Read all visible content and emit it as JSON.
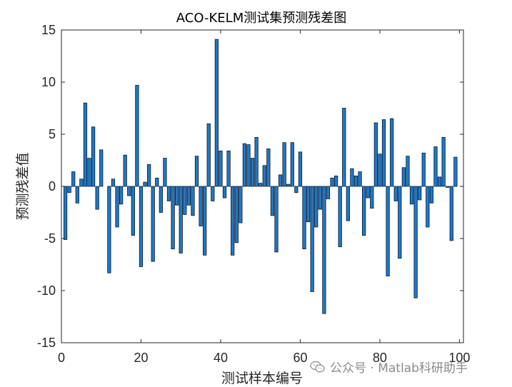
{
  "chart_data": {
    "type": "bar",
    "title": "ACO-KELM测试集预测残差图",
    "xlabel": "测试样本编号",
    "ylabel": "预测残差值",
    "xlim": [
      0,
      101
    ],
    "ylim": [
      -15,
      15
    ],
    "xticks": [
      0,
      20,
      40,
      60,
      80,
      100
    ],
    "yticks": [
      -15,
      -10,
      -5,
      0,
      5,
      10,
      15
    ],
    "grid": false,
    "colors": {
      "bar_fill": "#1f78c8",
      "bar_edge": "#0b1a2e"
    },
    "series": [
      {
        "x": [
          1,
          2,
          3,
          4,
          5,
          6,
          7,
          8,
          9,
          10,
          11,
          12,
          13,
          14,
          15,
          16,
          17,
          18,
          19,
          20,
          21,
          22,
          23,
          24,
          25,
          26,
          27,
          28,
          29,
          30,
          31,
          32,
          33,
          34,
          35,
          36,
          37,
          38,
          39,
          40,
          41,
          42,
          43,
          44,
          45,
          46,
          47,
          48,
          49,
          50,
          51,
          52,
          53,
          54,
          55,
          56,
          57,
          58,
          59,
          60,
          61,
          62,
          63,
          64,
          65,
          66,
          67,
          68,
          69,
          70,
          71,
          72,
          73,
          74,
          75,
          76,
          77,
          78,
          79,
          80,
          81,
          82,
          83,
          84,
          85,
          86,
          87,
          88,
          89,
          90,
          91,
          92,
          93,
          94,
          95,
          96,
          97,
          98,
          99,
          100
        ],
        "values": [
          -5.1,
          -0.6,
          1.4,
          -1.6,
          0.7,
          8.0,
          2.7,
          5.7,
          -2.2,
          3.5,
          0,
          -8.3,
          0.7,
          -3.9,
          -1.7,
          3.0,
          -0.9,
          -4.7,
          9.7,
          -7.7,
          0.4,
          2.1,
          -7.2,
          0.8,
          -2.5,
          2.7,
          -1.4,
          -6.0,
          -1.8,
          -6.4,
          -2.7,
          -1.8,
          -2.8,
          2.9,
          -3.8,
          -6.6,
          6.0,
          -1.4,
          14.1,
          3.4,
          -1.1,
          3.4,
          -6.6,
          -5.4,
          -3.5,
          4.1,
          4.0,
          2.7,
          4.7,
          0.3,
          2.0,
          3.6,
          -2.8,
          -6.3,
          1.1,
          4.2,
          0.2,
          4.2,
          -0.6,
          3.3,
          -6.0,
          -3.4,
          -10.1,
          -3.9,
          -2.2,
          -12.2,
          -1.2,
          0.8,
          1.0,
          -5.8,
          7.5,
          -3.3,
          1.7,
          1.0,
          1.4,
          -4.7,
          -1.1,
          -2.1,
          6.1,
          3.1,
          6.4,
          -8.6,
          6.5,
          -1.4,
          -6.9,
          1.8,
          2.9,
          -1.7,
          -10.7,
          -1.3,
          3.2,
          -3.9,
          -1.6,
          3.8,
          0.9,
          4.7,
          -0.1,
          -5.2,
          2.8,
          0
        ]
      }
    ]
  },
  "watermark": {
    "text": "公众号 · Matlab科研助手",
    "icon": "wechat-icon"
  }
}
